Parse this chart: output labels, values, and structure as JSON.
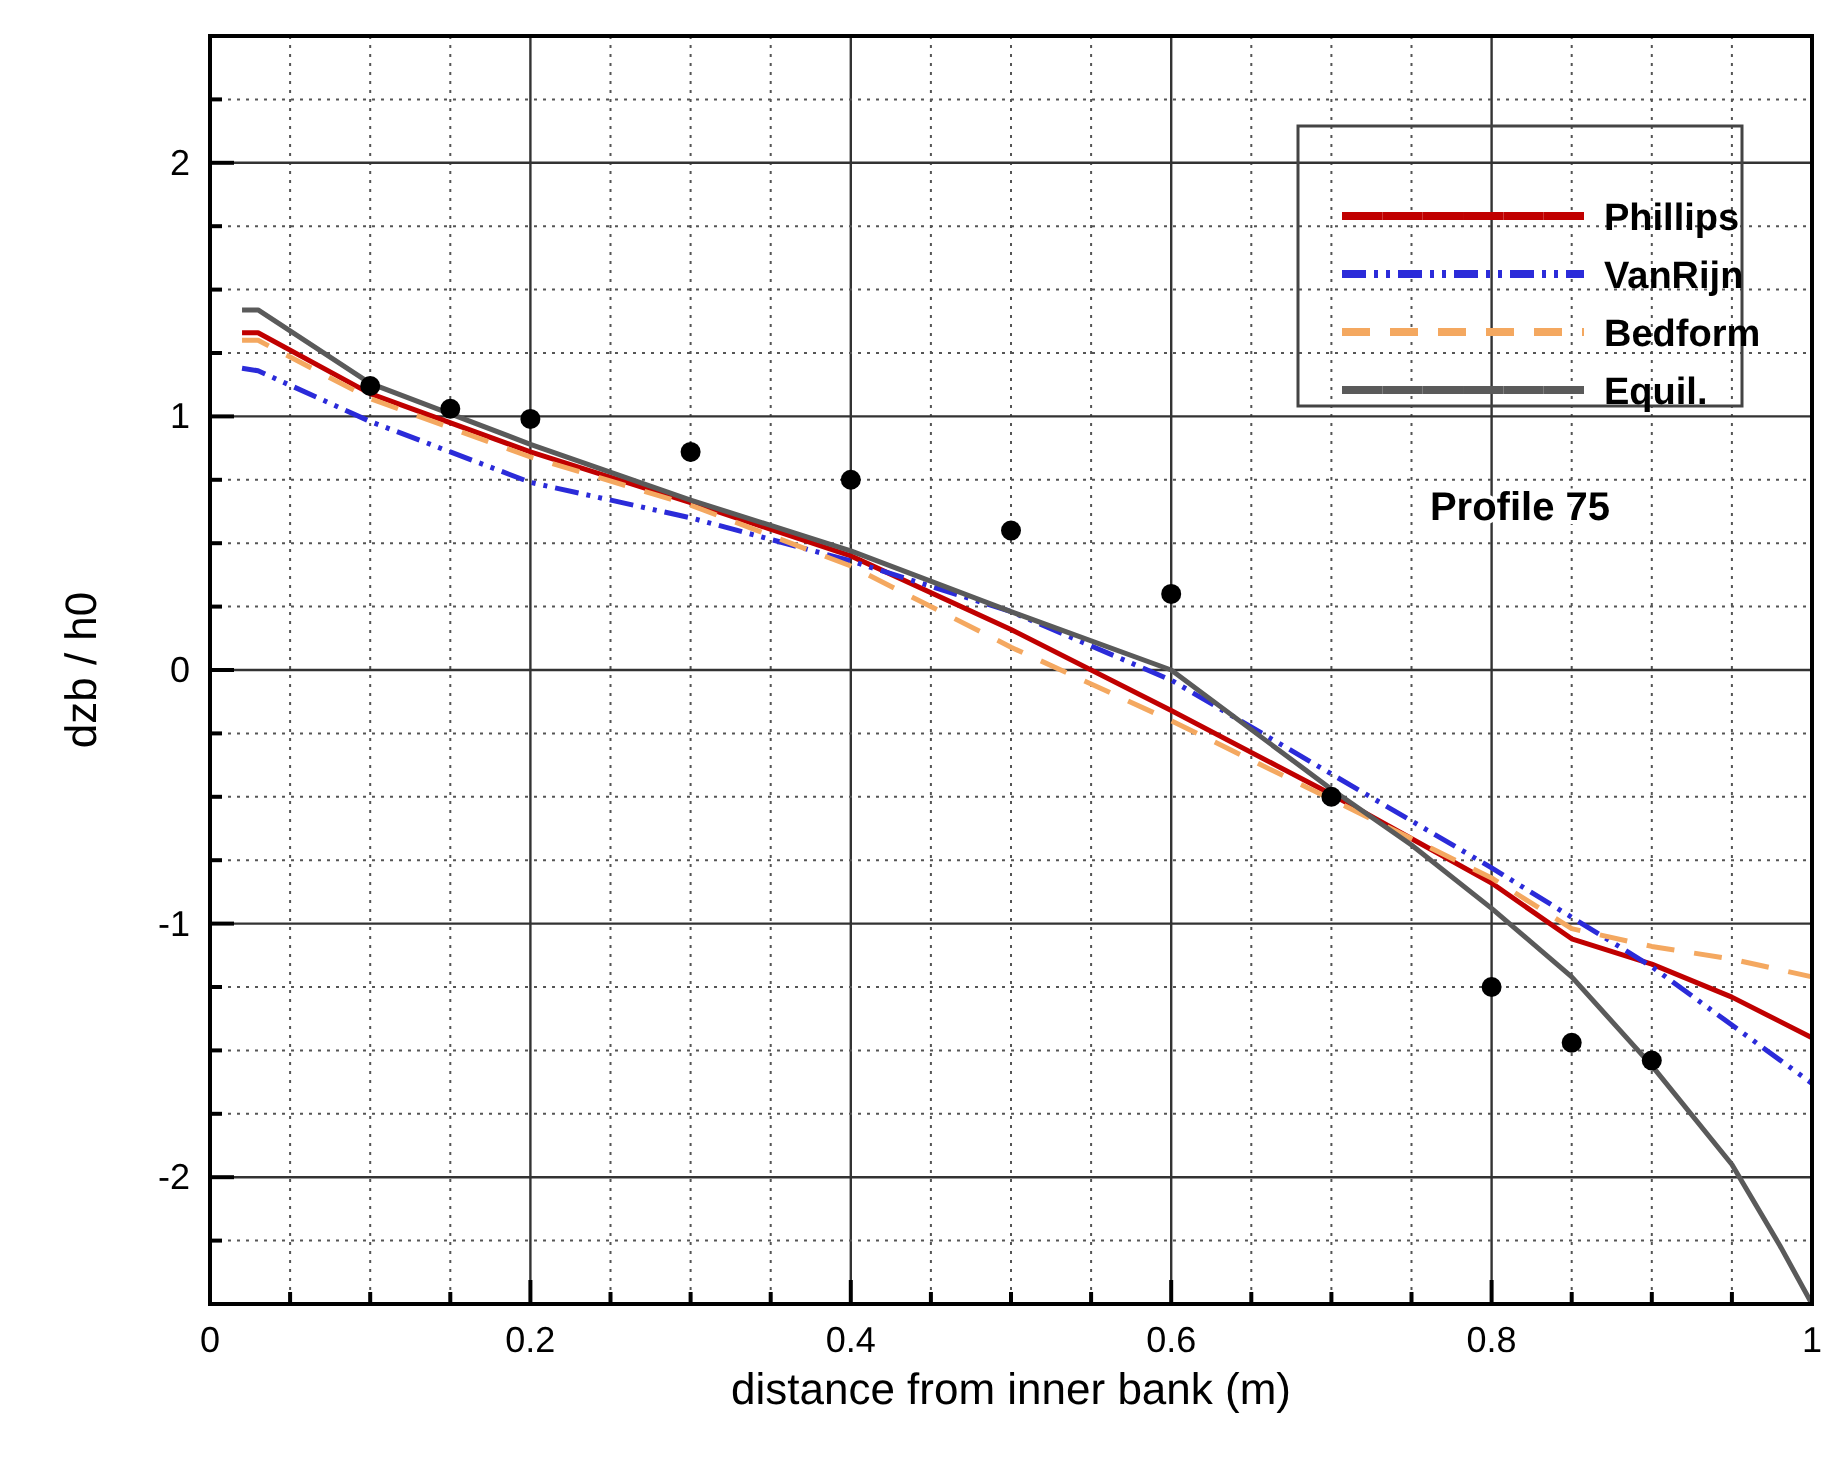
{
  "chart_data": {
    "type": "line",
    "xlabel": "distance from inner bank (m)",
    "ylabel": "dzb / h0",
    "xlim": [
      0,
      1
    ],
    "ylim": [
      -2.5,
      2.5
    ],
    "xticks": [
      0,
      {
        "value": 0.05,
        "label": null
      },
      {
        "value": 0.1,
        "label": null
      },
      {
        "value": 0.15,
        "label": null
      },
      0.2,
      {
        "value": 0.25,
        "label": null
      },
      {
        "value": 0.3,
        "label": null
      },
      {
        "value": 0.35,
        "label": null
      },
      0.4,
      {
        "value": 0.45,
        "label": null
      },
      {
        "value": 0.5,
        "label": null
      },
      {
        "value": 0.55,
        "label": null
      },
      0.6,
      {
        "value": 0.65,
        "label": null
      },
      {
        "value": 0.7,
        "label": null
      },
      {
        "value": 0.75,
        "label": null
      },
      0.8,
      {
        "value": 0.85,
        "label": null
      },
      {
        "value": 0.9,
        "label": null
      },
      {
        "value": 0.95,
        "label": null
      },
      1
    ],
    "yticks": [
      {
        "value": -2.25,
        "label": null
      },
      -2,
      {
        "value": -1.75,
        "label": null
      },
      {
        "value": -1.5,
        "label": null
      },
      {
        "value": -1.25,
        "label": null
      },
      -1,
      {
        "value": -0.75,
        "label": null
      },
      {
        "value": -0.5,
        "label": null
      },
      {
        "value": -0.25,
        "label": null
      },
      0,
      {
        "value": 0.25,
        "label": null
      },
      {
        "value": 0.5,
        "label": null
      },
      {
        "value": 0.75,
        "label": null
      },
      1,
      {
        "value": 1.25,
        "label": null
      },
      {
        "value": 1.5,
        "label": null
      },
      {
        "value": 1.75,
        "label": null
      },
      2,
      {
        "value": 2.25,
        "label": null
      }
    ],
    "grid": true,
    "legend": "top right",
    "annotations": [
      "Profile 75"
    ],
    "series": [
      {
        "name": "Phillips",
        "color": "#c00000",
        "line_style": "solid",
        "x": [
          0.02,
          0.03,
          0.1,
          0.2,
          0.3,
          0.4,
          0.5,
          0.6,
          0.7,
          0.8,
          0.85,
          0.9,
          0.95,
          1.0
        ],
        "values": [
          1.33,
          1.33,
          1.09,
          0.86,
          0.66,
          0.45,
          0.16,
          -0.16,
          -0.49,
          -0.84,
          -1.06,
          -1.16,
          -1.29,
          -1.45
        ]
      },
      {
        "name": "VanRijn",
        "color": "#2b2bd9",
        "line_style": "dashdotdot",
        "x": [
          0.02,
          0.03,
          0.1,
          0.15,
          0.2,
          0.3,
          0.4,
          0.5,
          0.6,
          0.7,
          0.8,
          0.9,
          1.0
        ],
        "values": [
          1.19,
          1.18,
          0.98,
          0.86,
          0.74,
          0.6,
          0.43,
          0.23,
          -0.04,
          -0.41,
          -0.78,
          -1.17,
          -1.63
        ]
      },
      {
        "name": "Bedform",
        "color": "#f4a860",
        "line_style": "dashed",
        "x": [
          0.02,
          0.03,
          0.1,
          0.2,
          0.3,
          0.4,
          0.5,
          0.6,
          0.7,
          0.8,
          0.85,
          0.9,
          0.95,
          1.0
        ],
        "values": [
          1.3,
          1.3,
          1.07,
          0.84,
          0.65,
          0.41,
          0.09,
          -0.2,
          -0.51,
          -0.82,
          -1.02,
          -1.09,
          -1.14,
          -1.21
        ]
      },
      {
        "name": "Equil.",
        "color": "#5a5a5a",
        "line_style": "solid",
        "x": [
          0.02,
          0.03,
          0.1,
          0.2,
          0.3,
          0.4,
          0.5,
          0.6,
          0.7,
          0.75,
          0.8,
          0.85,
          0.9,
          0.95,
          0.98,
          1.0
        ],
        "values": [
          1.42,
          1.42,
          1.13,
          0.89,
          0.67,
          0.47,
          0.23,
          0.0,
          -0.47,
          -0.69,
          -0.94,
          -1.21,
          -1.56,
          -1.95,
          -2.27,
          -2.5
        ]
      },
      {
        "type": "scatter",
        "color": "#000000",
        "marker": "circle",
        "x": [
          0.1,
          0.15,
          0.2,
          0.3,
          0.4,
          0.5,
          0.6,
          0.7,
          0.8,
          0.85,
          0.9
        ],
        "values": [
          1.12,
          1.03,
          0.99,
          0.86,
          0.75,
          0.55,
          0.3,
          -0.5,
          -1.25,
          -1.47,
          -1.54
        ]
      }
    ]
  }
}
